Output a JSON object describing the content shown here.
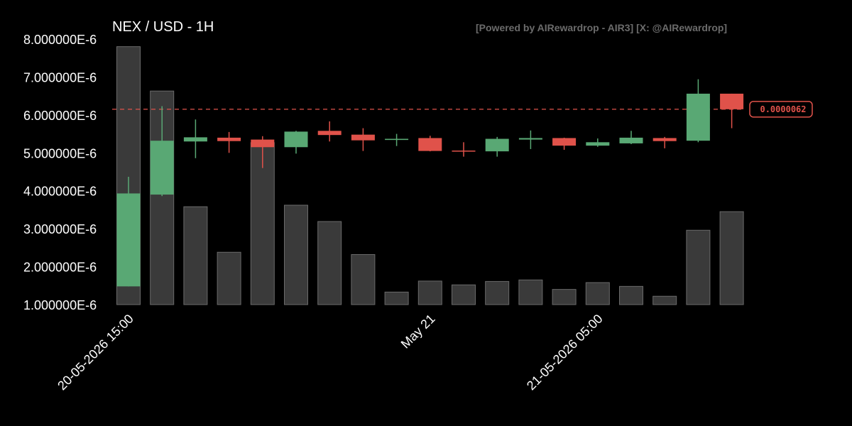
{
  "title": "NEX / USD - 1H",
  "watermark": "[Powered by AIRewardrop - AIR3] [X: @AIRewardrop]",
  "colors": {
    "background": "#000000",
    "up": "#59a874",
    "down": "#e0524a",
    "volume": "#3a3a3a",
    "volume_border": "#6a6a6a",
    "price_line": "#e0524a"
  },
  "chart_data": {
    "type": "candlestick",
    "title": "NEX / USD - 1H",
    "ylim": [
      1e-06,
      8e-06
    ],
    "y_ticks": [
      {
        "value": 8e-06,
        "label": "8.000000E-6"
      },
      {
        "value": 7e-06,
        "label": "7.000000E-6"
      },
      {
        "value": 6e-06,
        "label": "6.000000E-6"
      },
      {
        "value": 5e-06,
        "label": "5.000000E-6"
      },
      {
        "value": 4e-06,
        "label": "4.000000E-6"
      },
      {
        "value": 3e-06,
        "label": "3.000000E-6"
      },
      {
        "value": 2e-06,
        "label": "2.000000E-6"
      },
      {
        "value": 1e-06,
        "label": "1.000000E-6"
      }
    ],
    "x_ticks": [
      {
        "index": 0,
        "label": "20-05-2026 15:00"
      },
      {
        "index": 9,
        "label": "May 21"
      },
      {
        "index": 14,
        "label": "21-05-2026 05:00"
      }
    ],
    "current_price": {
      "value": 6.15e-06,
      "label": "0.0000062"
    },
    "candles": [
      {
        "open": 1.48e-06,
        "high": 4.37e-06,
        "low": 1.48e-06,
        "close": 3.93e-06,
        "volume_level": 7.8e-06
      },
      {
        "open": 3.9e-06,
        "high": 6.23e-06,
        "low": 3.86e-06,
        "close": 5.32e-06,
        "volume_level": 6.63e-06
      },
      {
        "open": 5.3e-06,
        "high": 5.88e-06,
        "low": 4.86e-06,
        "close": 5.41e-06,
        "volume_level": 3.58e-06
      },
      {
        "open": 5.4e-06,
        "high": 5.55e-06,
        "low": 5e-06,
        "close": 5.31e-06,
        "volume_level": 2.38e-06
      },
      {
        "open": 5.35e-06,
        "high": 5.44e-06,
        "low": 4.6e-06,
        "close": 5.15e-06,
        "volume_level": 5.27e-06
      },
      {
        "open": 5.15e-06,
        "high": 5.58e-06,
        "low": 4.98e-06,
        "close": 5.56e-06,
        "volume_level": 3.62e-06
      },
      {
        "open": 5.58e-06,
        "high": 5.83e-06,
        "low": 5.3e-06,
        "close": 5.47e-06,
        "volume_level": 3.19e-06
      },
      {
        "open": 5.48e-06,
        "high": 5.65e-06,
        "low": 5.05e-06,
        "close": 5.33e-06,
        "volume_level": 2.32e-06
      },
      {
        "open": 5.34e-06,
        "high": 5.5e-06,
        "low": 5.18e-06,
        "close": 5.37e-06,
        "volume_level": 1.33e-06
      },
      {
        "open": 5.39e-06,
        "high": 5.45e-06,
        "low": 5.04e-06,
        "close": 5.05e-06,
        "volume_level": 1.62e-06
      },
      {
        "open": 5.06e-06,
        "high": 5.28e-06,
        "low": 4.9e-06,
        "close": 5.04e-06,
        "volume_level": 1.52e-06
      },
      {
        "open": 5.04e-06,
        "high": 5.42e-06,
        "low": 4.9e-06,
        "close": 5.37e-06,
        "volume_level": 1.61e-06
      },
      {
        "open": 5.35e-06,
        "high": 5.59e-06,
        "low": 5.1e-06,
        "close": 5.39e-06,
        "volume_level": 1.65e-06
      },
      {
        "open": 5.39e-06,
        "high": 5.4e-06,
        "low": 5.08e-06,
        "close": 5.19e-06,
        "volume_level": 1.4e-06
      },
      {
        "open": 5.19e-06,
        "high": 5.38e-06,
        "low": 5.16e-06,
        "close": 5.28e-06,
        "volume_level": 1.58e-06
      },
      {
        "open": 5.25e-06,
        "high": 5.58e-06,
        "low": 5.23e-06,
        "close": 5.4e-06,
        "volume_level": 1.48e-06
      },
      {
        "open": 5.39e-06,
        "high": 5.42e-06,
        "low": 5.12e-06,
        "close": 5.31e-06,
        "volume_level": 1.22e-06
      },
      {
        "open": 5.32e-06,
        "high": 6.94e-06,
        "low": 5.28e-06,
        "close": 6.56e-06,
        "volume_level": 2.96e-06
      },
      {
        "open": 6.56e-06,
        "high": 6.56e-06,
        "low": 5.65e-06,
        "close": 6.15e-06,
        "volume_level": 3.45e-06
      }
    ]
  }
}
